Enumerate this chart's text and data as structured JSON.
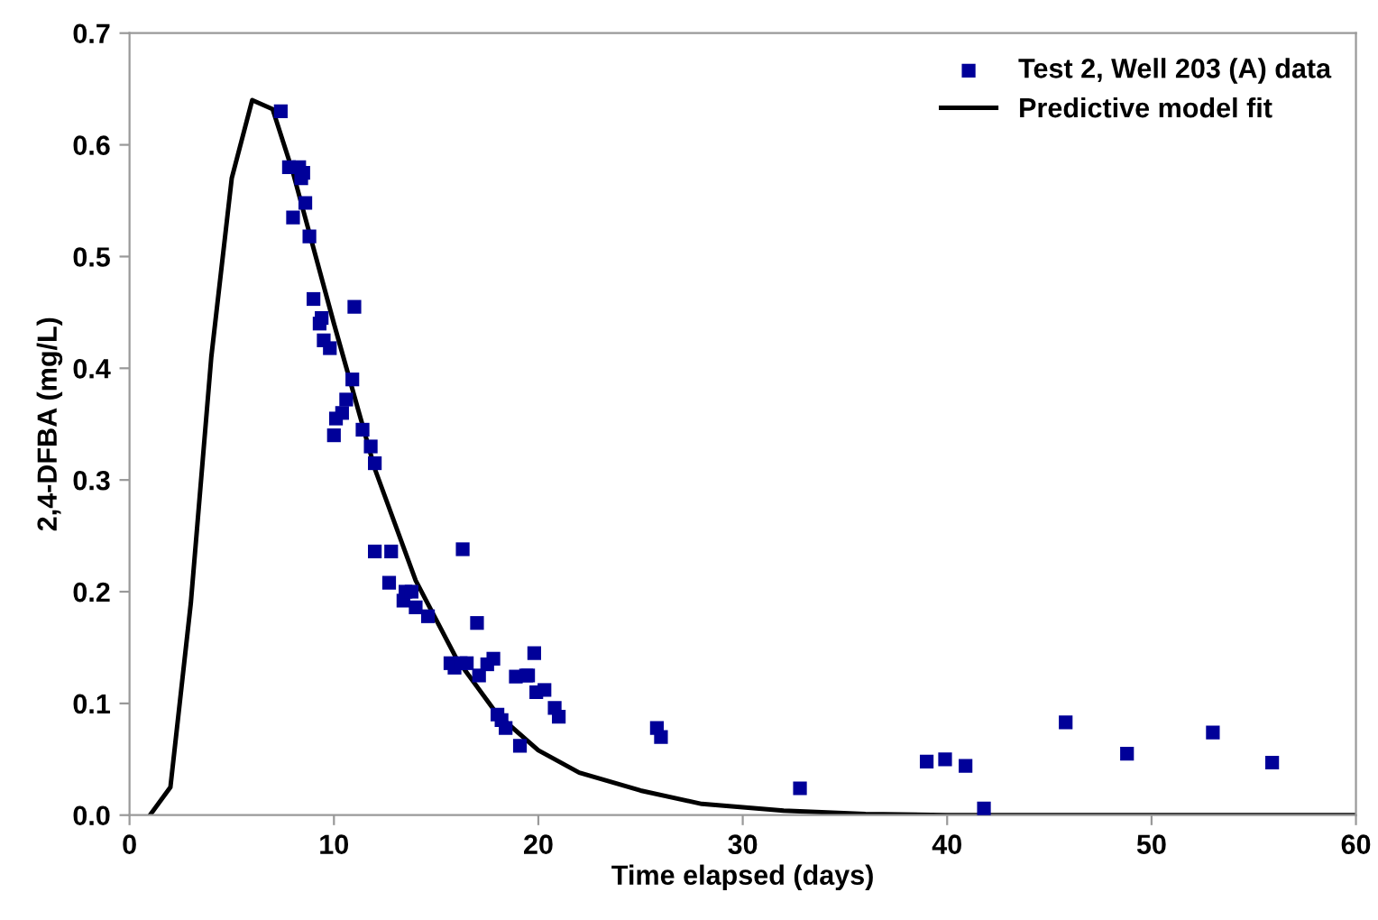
{
  "chart_data": {
    "type": "scatter",
    "xlabel": "Time elapsed (days)",
    "ylabel": "2,4-DFBA (mg/L)",
    "xlim": [
      0,
      60
    ],
    "xticks": [
      0,
      10,
      20,
      30,
      40,
      50,
      60
    ],
    "ylim": [
      0,
      0.7
    ],
    "yticks": [
      {
        "value": 0,
        "label": "0.0"
      },
      0.1,
      0.2,
      0.3,
      0.4,
      0.5,
      0.6,
      0.7
    ],
    "grid": false,
    "legend": "top right",
    "series": [
      {
        "name": "Test 2, Well 203 (A) data",
        "marker": "square",
        "color": "#000099",
        "x": [
          7.4,
          7.8,
          8.0,
          8.3,
          8.4,
          8.5,
          8.6,
          8.8,
          9.0,
          9.3,
          9.4,
          9.5,
          9.8,
          10.0,
          10.1,
          10.4,
          10.6,
          10.9,
          11.0,
          11.4,
          11.8,
          12.0,
          12.0,
          12.8,
          12.7,
          13.4,
          13.5,
          13.8,
          14.0,
          14.6,
          15.7,
          15.9,
          16.2,
          16.3,
          16.5,
          17.0,
          17.1,
          17.5,
          17.8,
          18.0,
          18.2,
          18.4,
          18.9,
          19.1,
          19.4,
          19.5,
          19.8,
          19.9,
          20.3,
          20.8,
          21.0,
          25.8,
          26.0,
          32.8,
          39.0,
          39.9,
          40.9,
          41.8,
          45.8,
          48.8,
          53.0,
          55.9
        ],
        "values": [
          0.63,
          0.58,
          0.535,
          0.58,
          0.57,
          0.575,
          0.548,
          0.518,
          0.462,
          0.44,
          0.445,
          0.425,
          0.418,
          0.34,
          0.355,
          0.36,
          0.372,
          0.39,
          0.455,
          0.345,
          0.33,
          0.315,
          0.236,
          0.236,
          0.208,
          0.192,
          0.2,
          0.2,
          0.186,
          0.178,
          0.136,
          0.132,
          0.136,
          0.238,
          0.136,
          0.172,
          0.125,
          0.135,
          0.14,
          0.09,
          0.085,
          0.078,
          0.124,
          0.062,
          0.125,
          0.125,
          0.145,
          0.11,
          0.112,
          0.096,
          0.088,
          0.078,
          0.07,
          0.024,
          0.048,
          0.05,
          0.044,
          0.006,
          0.083,
          0.055,
          0.074,
          0.047
        ]
      },
      {
        "name": "Predictive model fit",
        "type": "line",
        "marker": "none",
        "line_style": "solid",
        "color": "#000000",
        "x": [
          1,
          2,
          3,
          4,
          5,
          6,
          7,
          8,
          10,
          12,
          14,
          16,
          18,
          20,
          22,
          25,
          28,
          32,
          36,
          40,
          50,
          60
        ],
        "values": [
          0,
          0.025,
          0.19,
          0.41,
          0.57,
          0.64,
          0.632,
          0.575,
          0.44,
          0.31,
          0.21,
          0.14,
          0.09,
          0.058,
          0.038,
          0.022,
          0.01,
          0.004,
          0.001,
          0,
          0,
          0
        ]
      }
    ]
  }
}
